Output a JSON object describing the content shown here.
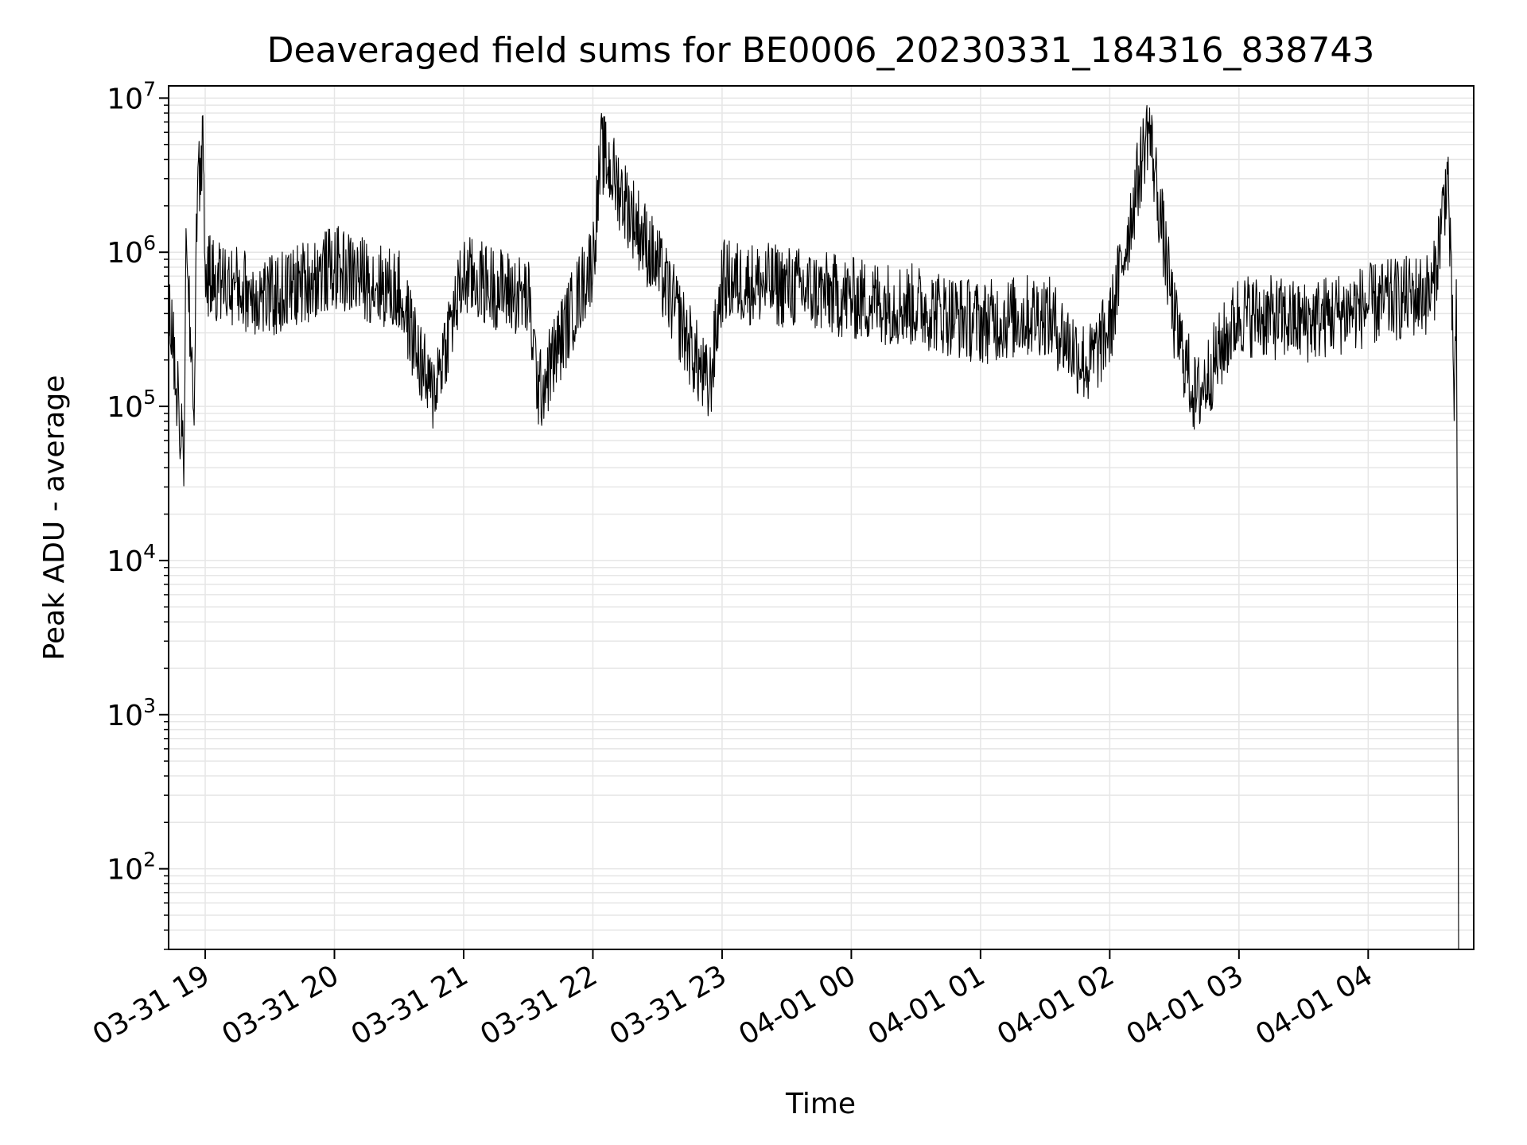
{
  "chart_data": {
    "type": "line",
    "title": "Deaveraged field sums for BE0006_20230331_184316_838743",
    "xlabel": "Time",
    "ylabel": "Peak ADU - average",
    "y_scale": "log",
    "ylim": [
      30,
      12000000
    ],
    "xlim": [
      "2023-03-31 18:43",
      "2023-04-01 04:49"
    ],
    "x_ticks": [
      "2023-03-31 19:00",
      "2023-03-31 20:00",
      "2023-03-31 21:00",
      "2023-03-31 22:00",
      "2023-03-31 23:00",
      "2023-04-01 00:00",
      "2023-04-01 01:00",
      "2023-04-01 02:00",
      "2023-04-01 03:00",
      "2023-04-01 04:00"
    ],
    "x_tick_labels": [
      "03-31 19",
      "03-31 20",
      "03-31 21",
      "03-31 22",
      "03-31 23",
      "04-01 00",
      "04-01 01",
      "04-01 02",
      "04-01 03",
      "04-01 04"
    ],
    "y_ticks": [
      100,
      1000,
      10000,
      100000,
      1000000,
      10000000
    ],
    "y_tick_labels": [
      {
        "base": "10",
        "exp": "2"
      },
      {
        "base": "10",
        "exp": "3"
      },
      {
        "base": "10",
        "exp": "4"
      },
      {
        "base": "10",
        "exp": "5"
      },
      {
        "base": "10",
        "exp": "6"
      },
      {
        "base": "10",
        "exp": "7"
      }
    ],
    "grid": true,
    "grid_minor": true,
    "line_color": "#000000",
    "grid_color": "#e6e6e6",
    "series": [
      {
        "x": [
          "2023-03-31 18:43",
          "2023-03-31 18:50",
          "2023-03-31 18:51",
          "2023-03-31 18:55",
          "2023-03-31 18:56",
          "2023-03-31 18:59",
          "2023-03-31 19:00",
          "2023-03-31 19:30",
          "2023-03-31 20:00",
          "2023-03-31 20:30",
          "2023-03-31 20:45",
          "2023-03-31 21:00",
          "2023-03-31 21:30",
          "2023-03-31 21:35",
          "2023-03-31 22:00",
          "2023-03-31 22:04",
          "2023-03-31 22:30",
          "2023-03-31 22:54",
          "2023-03-31 23:00",
          "2023-03-31 23:30",
          "2023-04-01 00:00",
          "2023-04-01 00:30",
          "2023-04-01 01:00",
          "2023-04-01 01:30",
          "2023-04-01 01:50",
          "2023-04-01 02:00",
          "2023-04-01 02:18",
          "2023-04-01 02:30",
          "2023-04-01 02:40",
          "2023-04-01 03:00",
          "2023-04-01 03:30",
          "2023-04-01 04:00",
          "2023-04-01 04:30",
          "2023-04-01 04:37",
          "2023-04-01 04:40",
          "2023-04-01 04:41",
          "2023-04-01 04:42"
        ],
        "y": [
          500000,
          40000,
          900000,
          100000,
          2000000,
          5500000,
          700000,
          500000,
          800000,
          550000,
          115000,
          700000,
          500000,
          120000,
          900000,
          4500000,
          800000,
          125000,
          650000,
          600000,
          500000,
          450000,
          350000,
          400000,
          180000,
          320000,
          6800000,
          350000,
          110000,
          400000,
          350000,
          450000,
          550000,
          3400000,
          110000,
          500000,
          30
        ]
      }
    ]
  }
}
